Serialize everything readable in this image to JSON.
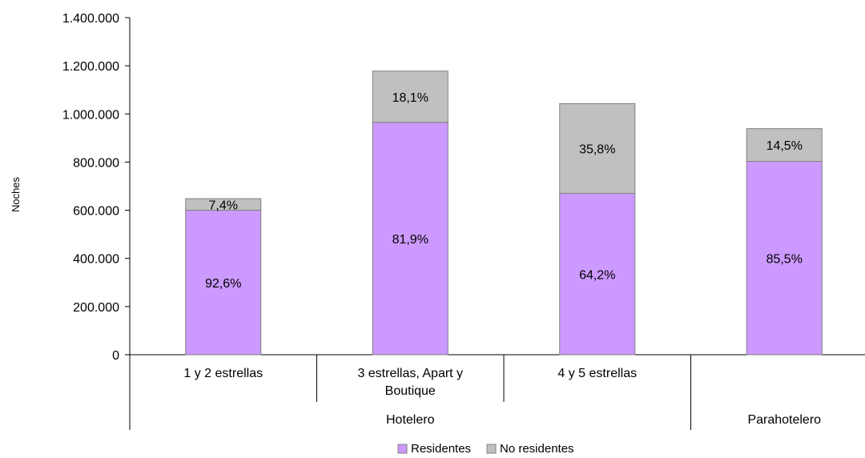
{
  "chart_data": {
    "type": "bar",
    "stacked": true,
    "ylabel": "Noches",
    "xlabel": "",
    "title": "",
    "ylim": [
      0,
      1400000
    ],
    "yticks": [
      "0",
      "200.000",
      "400.000",
      "600.000",
      "800.000",
      "1.000.000",
      "1.200.000",
      "1.400.000"
    ],
    "ytick_values": [
      0,
      200000,
      400000,
      600000,
      800000,
      1000000,
      1200000,
      1400000
    ],
    "categories": [
      "1 y 2 estrellas",
      "3 estrellas, Apart y Boutique",
      "4 y 5 estrellas",
      ""
    ],
    "category_lines": [
      [
        "1 y 2 estrellas"
      ],
      [
        "3 estrellas, Apart y",
        "Boutique"
      ],
      [
        "4 y 5 estrellas"
      ],
      [
        ""
      ]
    ],
    "groups": [
      {
        "label": "Hotelero",
        "categories": [
          0,
          1,
          2
        ]
      },
      {
        "label": "Parahotelero",
        "categories": [
          3
        ]
      }
    ],
    "series": [
      {
        "name": "Residentes",
        "color": "#cc99ff",
        "values": [
          600000,
          965000,
          670000,
          803000
        ],
        "labels": [
          "92,6%",
          "81,9%",
          "64,2%",
          "85,5%"
        ]
      },
      {
        "name": "No residentes",
        "color": "#c0c0c0",
        "values": [
          48000,
          213000,
          373000,
          136000
        ],
        "labels": [
          "7,4%",
          "18,1%",
          "35,8%",
          "14,5%"
        ]
      }
    ],
    "legend_position": "bottom",
    "grid": false
  }
}
